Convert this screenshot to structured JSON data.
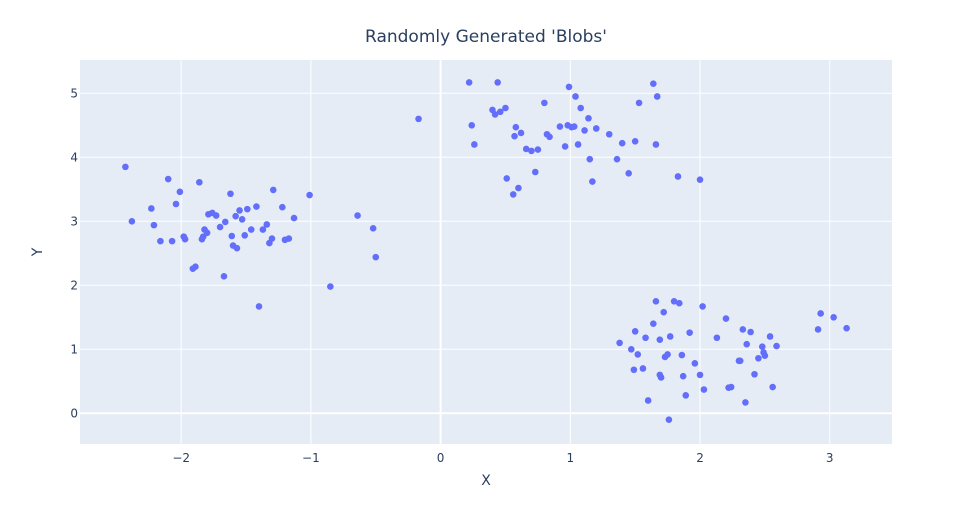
{
  "chart_data": {
    "type": "scatter",
    "title": "Randomly Generated 'Blobs'",
    "xlabel": "X",
    "ylabel": "Y",
    "xlim": [
      -2.78,
      3.48
    ],
    "ylim": [
      -0.48,
      5.52
    ],
    "xticks": [
      -2,
      -1,
      0,
      1,
      2,
      3
    ],
    "yticks": [
      0,
      1,
      2,
      3,
      4,
      5
    ],
    "grid": true,
    "legend": "none",
    "colors": {
      "plot_bg": "#e5ecf6",
      "grid": "#ffffff",
      "marker": "#636efa",
      "text": "#2a3f5f"
    },
    "series": [
      {
        "x": [
          -2.43,
          -2.38,
          -2.23,
          -2.21,
          -2.16,
          -2.1,
          -2.07,
          -2.04,
          -2.01,
          -1.98,
          -1.97,
          -1.91,
          -1.89,
          -1.86,
          -1.84,
          -1.83,
          -1.82,
          -1.8,
          -1.79,
          -1.76,
          -1.73,
          -1.7,
          -1.67,
          -1.66,
          -1.62,
          -1.61,
          -1.6,
          -1.58,
          -1.57,
          -1.55,
          -1.53,
          -1.51,
          -1.49,
          -1.46,
          -1.42,
          -1.4,
          -1.37,
          -1.34,
          -1.32,
          -1.3,
          -1.29,
          -1.22,
          -1.2,
          -1.17,
          -1.13,
          -1.01,
          -0.85,
          -0.64,
          -0.52,
          -0.5,
          -0.17
        ],
        "y": [
          3.85,
          3.0,
          3.2,
          2.94,
          2.69,
          3.66,
          2.69,
          3.27,
          3.46,
          2.76,
          2.72,
          2.26,
          2.29,
          3.61,
          2.72,
          2.76,
          2.87,
          2.82,
          3.11,
          3.13,
          3.09,
          2.91,
          2.14,
          2.99,
          3.43,
          2.77,
          2.62,
          3.08,
          2.58,
          3.17,
          3.03,
          2.78,
          3.19,
          2.87,
          3.23,
          1.67,
          2.87,
          2.95,
          2.66,
          2.73,
          3.49,
          3.22,
          2.71,
          2.73,
          3.05,
          3.41,
          1.98,
          3.09,
          2.89,
          2.44,
          4.6
        ]
      },
      {
        "x": [
          0.22,
          0.24,
          0.26,
          0.4,
          0.42,
          0.44,
          0.46,
          0.5,
          0.51,
          0.56,
          0.57,
          0.58,
          0.6,
          0.62,
          0.66,
          0.7,
          0.73,
          0.75,
          0.8,
          0.82,
          0.84,
          0.92,
          0.96,
          0.98,
          0.99,
          1.01,
          1.03,
          1.04,
          1.06,
          1.08,
          1.11,
          1.14,
          1.15,
          1.17,
          1.2,
          1.3,
          1.36,
          1.4,
          1.45,
          1.5,
          1.53,
          1.64,
          1.66,
          1.67,
          1.83,
          2.0
        ],
        "y": [
          5.17,
          4.5,
          4.2,
          4.74,
          4.67,
          5.17,
          4.71,
          4.77,
          3.67,
          3.42,
          4.33,
          4.47,
          3.52,
          4.38,
          4.13,
          4.1,
          3.77,
          4.12,
          4.85,
          4.36,
          4.32,
          4.48,
          4.17,
          4.5,
          5.1,
          4.47,
          4.48,
          4.95,
          4.2,
          4.77,
          4.42,
          4.61,
          3.97,
          3.62,
          4.45,
          4.36,
          3.97,
          4.22,
          3.75,
          4.25,
          4.85,
          5.15,
          4.2,
          4.95,
          3.7,
          3.65
        ]
      },
      {
        "x": [
          1.38,
          1.47,
          1.49,
          1.5,
          1.52,
          1.56,
          1.58,
          1.6,
          1.64,
          1.66,
          1.69,
          1.69,
          1.7,
          1.72,
          1.73,
          1.75,
          1.76,
          1.77,
          1.8,
          1.84,
          1.86,
          1.87,
          1.89,
          1.92,
          1.96,
          2.0,
          2.02,
          2.03,
          2.13,
          2.2,
          2.22,
          2.24,
          2.3,
          2.31,
          2.33,
          2.35,
          2.36,
          2.39,
          2.42,
          2.45,
          2.48,
          2.49,
          2.5,
          2.54,
          2.56,
          2.59,
          2.91,
          2.93,
          3.03,
          3.13
        ],
        "y": [
          1.1,
          1.0,
          0.68,
          1.28,
          0.92,
          0.7,
          1.18,
          0.2,
          1.4,
          1.75,
          1.15,
          0.6,
          0.56,
          1.58,
          0.88,
          0.92,
          -0.1,
          1.2,
          1.75,
          1.72,
          0.91,
          0.58,
          0.28,
          1.26,
          0.78,
          0.6,
          1.67,
          0.37,
          1.18,
          1.48,
          0.4,
          0.41,
          0.82,
          0.82,
          1.31,
          0.17,
          1.08,
          1.27,
          0.61,
          0.86,
          1.04,
          0.95,
          0.9,
          1.2,
          0.41,
          1.05,
          1.31,
          1.56,
          1.5,
          1.33
        ]
      }
    ]
  }
}
